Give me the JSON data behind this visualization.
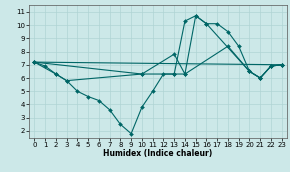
{
  "bg_color": "#cce8e8",
  "grid_color": "#b0d4d4",
  "line_color": "#006666",
  "xlabel": "Humidex (Indice chaleur)",
  "xlim": [
    -0.5,
    23.5
  ],
  "ylim": [
    1.5,
    11.5
  ],
  "xticks": [
    0,
    1,
    2,
    3,
    4,
    5,
    6,
    7,
    8,
    9,
    10,
    11,
    12,
    13,
    14,
    15,
    16,
    17,
    18,
    19,
    20,
    21,
    22,
    23
  ],
  "yticks": [
    2,
    3,
    4,
    5,
    6,
    7,
    8,
    9,
    10,
    11
  ],
  "line1_x": [
    0,
    1,
    2,
    3,
    4,
    5,
    6,
    7,
    8,
    9,
    10,
    11,
    12,
    13,
    14,
    15,
    16,
    17,
    18,
    19,
    20,
    21,
    22,
    23
  ],
  "line1_y": [
    7.2,
    6.9,
    6.3,
    5.8,
    5.0,
    4.6,
    4.3,
    3.6,
    2.5,
    1.8,
    3.8,
    5.0,
    6.3,
    6.3,
    10.3,
    10.7,
    10.1,
    10.1,
    9.5,
    8.4,
    6.5,
    6.0,
    6.9,
    7.0
  ],
  "line2_x": [
    0,
    2,
    3,
    10,
    13,
    14,
    15,
    16,
    20,
    21,
    22,
    23
  ],
  "line2_y": [
    7.2,
    6.3,
    5.8,
    6.3,
    7.8,
    6.3,
    10.7,
    10.1,
    6.5,
    6.0,
    6.9,
    7.0
  ],
  "line3_x": [
    0,
    10,
    13,
    14,
    18,
    20,
    21,
    22,
    23
  ],
  "line3_y": [
    7.2,
    6.3,
    6.3,
    6.3,
    8.4,
    6.5,
    6.0,
    6.9,
    7.0
  ],
  "line4_x": [
    0,
    23
  ],
  "line4_y": [
    7.2,
    7.0
  ],
  "markersize": 2.0,
  "linewidth": 0.8
}
